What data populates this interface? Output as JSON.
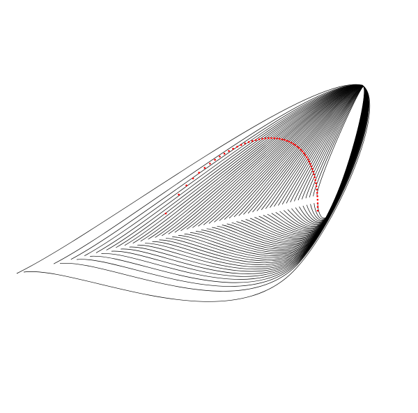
{
  "figure": {
    "kind": "nested-loop-curves",
    "background_color": "#ffffff",
    "curve_color": "#000000",
    "marker_color": "#ff0000",
    "curve_count": 46,
    "marker_count": 58
  }
}
